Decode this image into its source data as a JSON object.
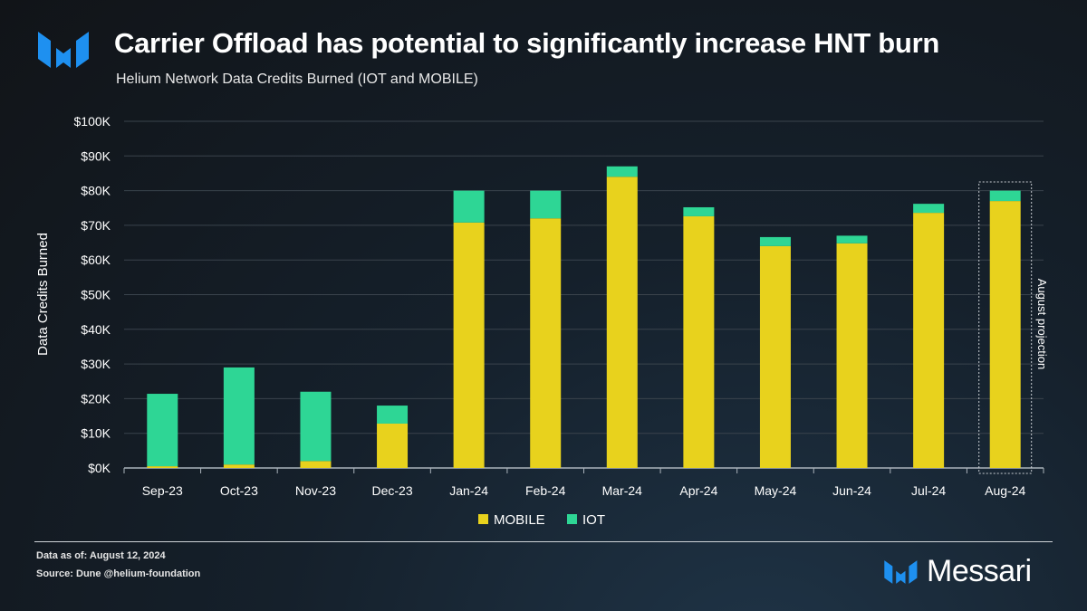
{
  "header": {
    "title": "Carrier Offload has potential to significantly increase HNT burn",
    "subtitle": "Helium Network Data Credits Burned (IOT and MOBILE)"
  },
  "chart_data": {
    "type": "bar",
    "stacked": true,
    "ylabel": "Data Credits Burned",
    "xlabel": "",
    "ylim": [
      0,
      100000
    ],
    "yticks": [
      "$0K",
      "$10K",
      "$20K",
      "$30K",
      "$40K",
      "$50K",
      "$60K",
      "$70K",
      "$80K",
      "$90K",
      "$100K"
    ],
    "grid": true,
    "categories": [
      "Sep-23",
      "Oct-23",
      "Nov-23",
      "Dec-23",
      "Jan-24",
      "Feb-24",
      "Mar-24",
      "Apr-24",
      "May-24",
      "Jun-24",
      "Jul-24",
      "Aug-24"
    ],
    "series": [
      {
        "name": "MOBILE",
        "color": "#e8d21d",
        "values": [
          500,
          1000,
          2000,
          12800,
          70800,
          72000,
          84000,
          72600,
          64000,
          64800,
          73600,
          77000
        ]
      },
      {
        "name": "IOT",
        "color": "#2ed695",
        "values": [
          20900,
          28000,
          20000,
          5200,
          9200,
          8000,
          3000,
          2600,
          2600,
          2200,
          2600,
          3000
        ]
      }
    ],
    "legend_position": "bottom",
    "annotation": "August projection"
  },
  "footer": {
    "data_as_of": "Data as of: August 12, 2024",
    "source": "Source: Dune @helium-foundation",
    "brand": "Messari"
  },
  "colors": {
    "brand_blue": "#1e90f0"
  }
}
